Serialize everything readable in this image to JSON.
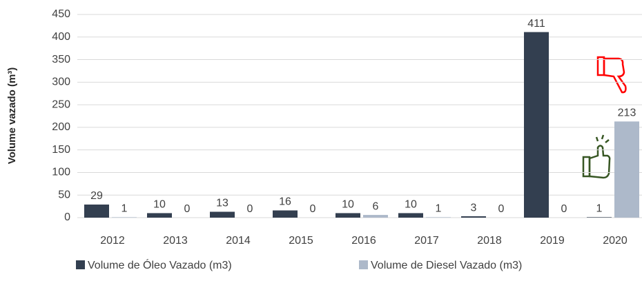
{
  "chart_data": {
    "type": "bar",
    "ylabel": "Volume vazado (m³)",
    "categories": [
      "2012",
      "2013",
      "2014",
      "2015",
      "2016",
      "2017",
      "2018",
      "2019",
      "2020"
    ],
    "series": [
      {
        "name": "Volume de Óleo Vazado (m3)",
        "color": "#333f50",
        "values": [
          29,
          10,
          13,
          16,
          10,
          10,
          3,
          411,
          1
        ]
      },
      {
        "name": "Volume de Diesel Vazado (m3)",
        "color": "#adb9ca",
        "values": [
          1,
          0,
          0,
          0,
          6,
          1,
          0,
          0,
          213
        ]
      }
    ],
    "ylim": [
      0,
      450
    ],
    "yticks": [
      0,
      50,
      100,
      150,
      200,
      250,
      300,
      350,
      400,
      450
    ],
    "grid": true,
    "legend": "bottom"
  }
}
